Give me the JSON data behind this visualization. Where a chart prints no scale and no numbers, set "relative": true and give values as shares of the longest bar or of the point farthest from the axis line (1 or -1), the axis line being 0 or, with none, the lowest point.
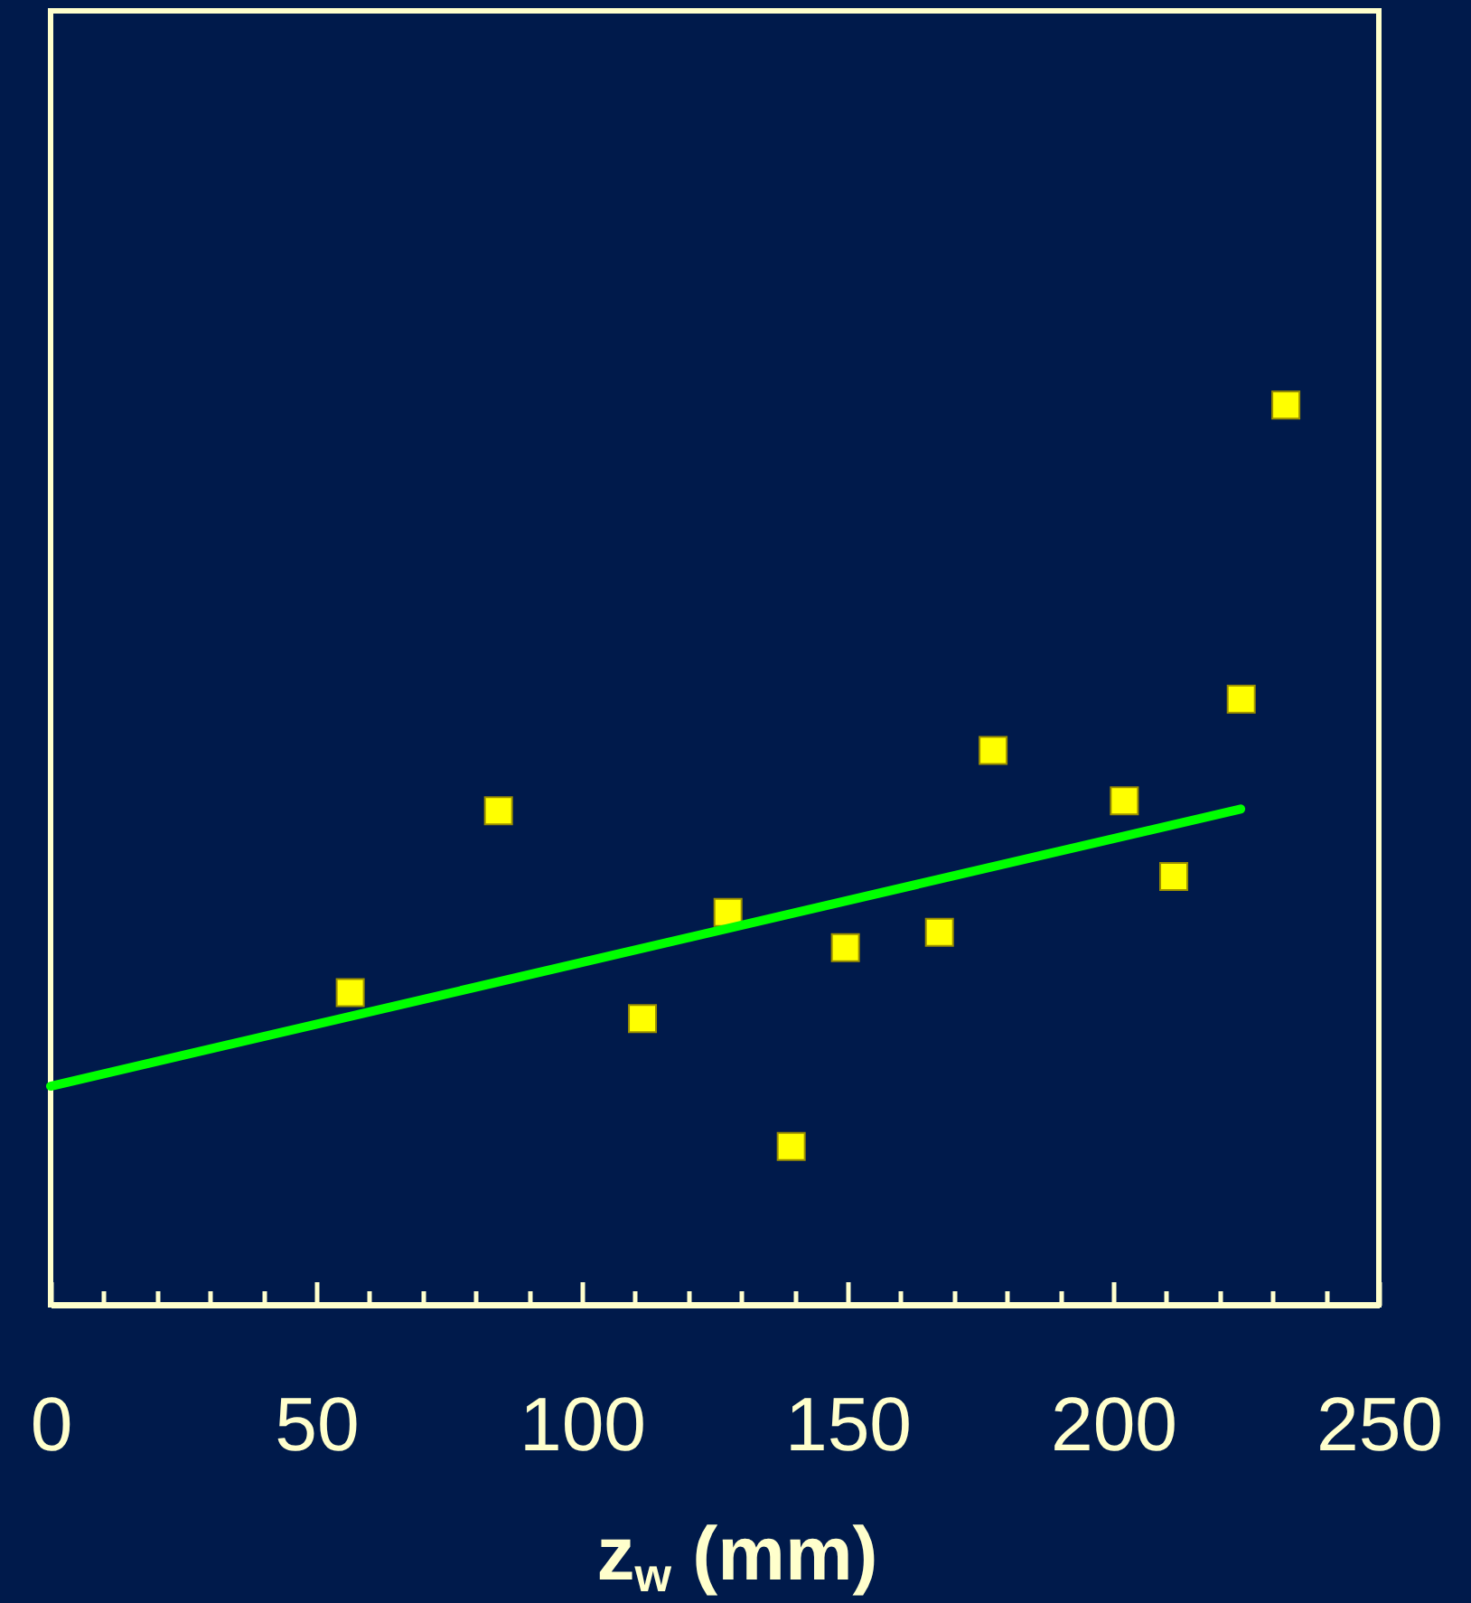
{
  "chart_data": {
    "type": "scatter",
    "xlabel": "z$_{w}$ (mm)",
    "relative": true,
    "xlim": [
      0,
      250
    ],
    "xticks": [
      0,
      {
        "value": 10,
        "label": null
      },
      {
        "value": 20,
        "label": null
      },
      {
        "value": 30,
        "label": null
      },
      {
        "value": 40,
        "label": null
      },
      50,
      {
        "value": 60,
        "label": null
      },
      {
        "value": 70,
        "label": null
      },
      {
        "value": 80,
        "label": null
      },
      {
        "value": 90,
        "label": null
      },
      100,
      {
        "value": 110,
        "label": null
      },
      {
        "value": 120,
        "label": null
      },
      {
        "value": 130,
        "label": null
      },
      {
        "value": 140,
        "label": null
      },
      150,
      {
        "value": 160,
        "label": null
      },
      {
        "value": 170,
        "label": null
      },
      {
        "value": 180,
        "label": null
      },
      {
        "value": 190,
        "label": null
      },
      200,
      {
        "value": 210,
        "label": null
      },
      {
        "value": 220,
        "label": null
      },
      {
        "value": 230,
        "label": null
      },
      {
        "value": 240,
        "label": null
      },
      250
    ],
    "series": [
      {
        "type": "scatter",
        "marker": "square",
        "color": "#ffff00",
        "x": [
          56.4,
          84.3,
          111.4,
          127.5,
          139.4,
          149.6,
          167.3,
          177.4,
          202.1,
          211.4,
          224.1,
          232.5
        ],
        "values": [
          0.347,
          0.549,
          0.318,
          0.436,
          0.176,
          0.397,
          0.414,
          0.616,
          0.56,
          0.476,
          0.673,
          1
        ]
      },
      {
        "type": "line",
        "color": "#00ff00",
        "x": [
          0,
          224
        ],
        "values": [
          0.243,
          0.551
        ]
      }
    ]
  }
}
